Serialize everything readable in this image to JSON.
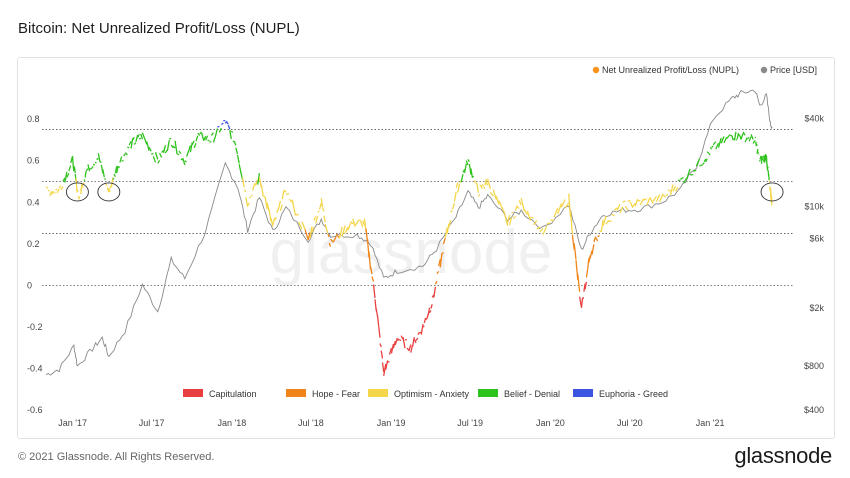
{
  "header": {
    "title": "Bitcoin: Net Unrealized Profit/Loss (NUPL)"
  },
  "footer": {
    "copyright": "© 2021 Glassnode. All Rights Reserved.",
    "brand": "glassnode"
  },
  "watermark": "glassnode",
  "colors": {
    "capitulation": "#e84040",
    "hope_fear": "#f08418",
    "optimism_anxiety": "#f4d64a",
    "belief_denial": "#2ec21c",
    "euphoria_greed": "#3b55e0",
    "price": "#8a8a8a",
    "nupl_dot": "#f7931a"
  },
  "chart_data": {
    "type": "line",
    "title": "Bitcoin: Net Unrealized Profit/Loss (NUPL)",
    "top_legend": [
      {
        "label": "Net Unrealized Profit/Loss (NUPL)",
        "color": "#f7931a"
      },
      {
        "label": "Price [USD]",
        "color": "#8a8a8a"
      }
    ],
    "zone_legend": [
      {
        "label": "Capitulation",
        "color": "#e84040"
      },
      {
        "label": "Hope - Fear",
        "color": "#f08418"
      },
      {
        "label": "Optimism - Anxiety",
        "color": "#f4d64a"
      },
      {
        "label": "Belief - Denial",
        "color": "#2ec21c"
      },
      {
        "label": "Euphoria - Greed",
        "color": "#3b55e0"
      }
    ],
    "x_ticks": [
      "Jan '17",
      "Jul '17",
      "Jan '18",
      "Jul '18",
      "Jan '19",
      "Jul '19",
      "Jan '20",
      "Jul '20",
      "Jan '21"
    ],
    "x_range": [
      "2016-11-01",
      "2021-06-01"
    ],
    "y_left": {
      "ticks": [
        -0.6,
        -0.4,
        -0.2,
        0,
        0.2,
        0.4,
        0.6,
        0.8
      ],
      "tick_labels": [
        "-0.6",
        "-0.4",
        "-0.2",
        "0",
        "0.2",
        "0.4",
        "0.6",
        "0.8"
      ],
      "range": [
        -0.6,
        0.95
      ]
    },
    "y_right": {
      "scale": "log",
      "ticks": [
        400,
        800,
        2000,
        6000,
        10000,
        40000
      ],
      "tick_labels": [
        "$400",
        "$800",
        "$2k",
        "$6k",
        "$10k",
        "$40k"
      ],
      "range": [
        400,
        65000
      ]
    },
    "zone_thresholds": [
      0,
      0.25,
      0.5,
      0.75
    ],
    "nupl_series": {
      "name": "Net Unrealized Profit/Loss (NUPL)",
      "points": [
        [
          "2016-11-01",
          0.45
        ],
        [
          "2016-12-01",
          0.46
        ],
        [
          "2017-01-01",
          0.6
        ],
        [
          "2017-01-15",
          0.42
        ],
        [
          "2017-02-01",
          0.55
        ],
        [
          "2017-03-01",
          0.62
        ],
        [
          "2017-03-25",
          0.45
        ],
        [
          "2017-04-15",
          0.58
        ],
        [
          "2017-05-15",
          0.68
        ],
        [
          "2017-06-10",
          0.72
        ],
        [
          "2017-07-15",
          0.6
        ],
        [
          "2017-08-15",
          0.7
        ],
        [
          "2017-09-15",
          0.6
        ],
        [
          "2017-10-15",
          0.72
        ],
        [
          "2017-11-15",
          0.7
        ],
        [
          "2017-12-17",
          0.79
        ],
        [
          "2018-01-10",
          0.68
        ],
        [
          "2018-02-06",
          0.4
        ],
        [
          "2018-03-05",
          0.52
        ],
        [
          "2018-04-05",
          0.28
        ],
        [
          "2018-05-05",
          0.46
        ],
        [
          "2018-06-25",
          0.22
        ],
        [
          "2018-07-25",
          0.4
        ],
        [
          "2018-08-15",
          0.2
        ],
        [
          "2018-10-01",
          0.3
        ],
        [
          "2018-11-01",
          0.3
        ],
        [
          "2018-11-25",
          -0.05
        ],
        [
          "2018-12-15",
          -0.42
        ],
        [
          "2019-01-15",
          -0.25
        ],
        [
          "2019-02-15",
          -0.3
        ],
        [
          "2019-03-15",
          -0.2
        ],
        [
          "2019-04-05",
          -0.08
        ],
        [
          "2019-05-01",
          0.18
        ],
        [
          "2019-05-30",
          0.45
        ],
        [
          "2019-06-26",
          0.6
        ],
        [
          "2019-07-20",
          0.45
        ],
        [
          "2019-08-10",
          0.5
        ],
        [
          "2019-09-25",
          0.3
        ],
        [
          "2019-10-26",
          0.4
        ],
        [
          "2019-12-15",
          0.25
        ],
        [
          "2020-02-12",
          0.42
        ],
        [
          "2020-03-12",
          -0.12
        ],
        [
          "2020-04-01",
          0.15
        ],
        [
          "2020-05-01",
          0.3
        ],
        [
          "2020-06-15",
          0.38
        ],
        [
          "2020-07-25",
          0.4
        ],
        [
          "2020-09-15",
          0.42
        ],
        [
          "2020-10-25",
          0.5
        ],
        [
          "2020-12-15",
          0.6
        ],
        [
          "2021-01-08",
          0.66
        ],
        [
          "2021-02-20",
          0.72
        ],
        [
          "2021-03-13",
          0.72
        ],
        [
          "2021-04-14",
          0.7
        ],
        [
          "2021-04-25",
          0.6
        ],
        [
          "2021-05-10",
          0.62
        ],
        [
          "2021-05-19",
          0.45
        ],
        [
          "2021-05-23",
          0.4
        ]
      ]
    },
    "price_series": {
      "name": "Price [USD]",
      "points": [
        [
          "2016-11-01",
          700
        ],
        [
          "2016-12-01",
          760
        ],
        [
          "2017-01-04",
          1100
        ],
        [
          "2017-01-12",
          800
        ],
        [
          "2017-02-15",
          1050
        ],
        [
          "2017-03-10",
          1250
        ],
        [
          "2017-03-25",
          930
        ],
        [
          "2017-05-01",
          1400
        ],
        [
          "2017-06-10",
          2900
        ],
        [
          "2017-07-15",
          1900
        ],
        [
          "2017-08-15",
          4300
        ],
        [
          "2017-09-15",
          3200
        ],
        [
          "2017-11-01",
          6700
        ],
        [
          "2017-12-17",
          19500
        ],
        [
          "2018-01-15",
          13500
        ],
        [
          "2018-02-06",
          6900
        ],
        [
          "2018-03-05",
          11500
        ],
        [
          "2018-04-05",
          6700
        ],
        [
          "2018-05-05",
          9800
        ],
        [
          "2018-06-25",
          5900
        ],
        [
          "2018-07-25",
          8200
        ],
        [
          "2018-08-15",
          6300
        ],
        [
          "2018-10-15",
          6400
        ],
        [
          "2018-11-15",
          5600
        ],
        [
          "2018-12-15",
          3200
        ],
        [
          "2019-01-15",
          3600
        ],
        [
          "2019-03-15",
          3900
        ],
        [
          "2019-04-15",
          5100
        ],
        [
          "2019-05-30",
          8500
        ],
        [
          "2019-06-26",
          12500
        ],
        [
          "2019-07-20",
          9800
        ],
        [
          "2019-08-10",
          11800
        ],
        [
          "2019-09-25",
          8200
        ],
        [
          "2019-10-26",
          9300
        ],
        [
          "2019-12-15",
          7000
        ],
        [
          "2020-02-12",
          10300
        ],
        [
          "2020-03-12",
          5000
        ],
        [
          "2020-04-01",
          6600
        ],
        [
          "2020-05-01",
          8800
        ],
        [
          "2020-06-15",
          9400
        ],
        [
          "2020-07-25",
          9600
        ],
        [
          "2020-09-15",
          10800
        ],
        [
          "2020-10-25",
          13000
        ],
        [
          "2020-12-01",
          19000
        ],
        [
          "2021-01-08",
          40000
        ],
        [
          "2021-02-20",
          55000
        ],
        [
          "2021-03-13",
          60000
        ],
        [
          "2021-04-14",
          63000
        ],
        [
          "2021-04-25",
          49000
        ],
        [
          "2021-05-10",
          58000
        ],
        [
          "2021-05-19",
          37000
        ],
        [
          "2021-05-23",
          35000
        ]
      ]
    },
    "annotations": [
      {
        "type": "circle",
        "date": "2017-01-12",
        "value": 0.44
      },
      {
        "type": "circle",
        "date": "2017-03-25",
        "value": 0.44
      },
      {
        "type": "circle",
        "date": "2021-05-23",
        "value": 0.44
      }
    ],
    "grid": false
  }
}
